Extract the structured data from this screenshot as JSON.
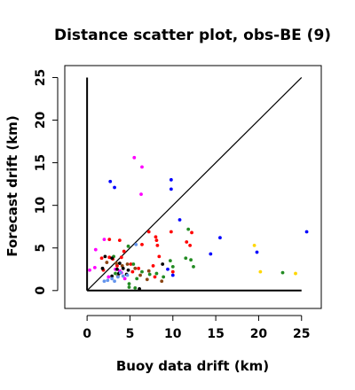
{
  "chart_data": {
    "type": "scatter",
    "title": "Distance scatter plot, obs-BE (9)",
    "xlabel": "Buoy data drift (km)",
    "ylabel": "Forecast drift (km)",
    "xlim": [
      -2.6,
      27.3
    ],
    "ylim": [
      -2.1,
      26.4
    ],
    "x_ticks": [
      0,
      5,
      10,
      15,
      20,
      25
    ],
    "y_ticks": [
      0,
      5,
      10,
      15,
      20,
      25
    ],
    "grid": false,
    "legend": "none",
    "reference_lines": [
      {
        "name": "y-axis",
        "x": [
          0,
          0
        ],
        "y": [
          0,
          25
        ],
        "color": "#000000"
      },
      {
        "name": "x-axis",
        "x": [
          0,
          25
        ],
        "y": [
          0,
          0
        ],
        "color": "#000000"
      },
      {
        "name": "identity",
        "x": [
          0,
          25
        ],
        "y": [
          0,
          25
        ],
        "color": "#000000"
      }
    ],
    "series": [
      {
        "color": "#0000ff",
        "points": [
          [
            2.7,
            12.8
          ],
          [
            3.2,
            12.1
          ],
          [
            9.8,
            13.0
          ],
          [
            9.8,
            11.9
          ],
          [
            10.8,
            8.3
          ],
          [
            15.5,
            6.2
          ],
          [
            14.4,
            4.3
          ],
          [
            19.8,
            4.5
          ],
          [
            25.6,
            6.9
          ],
          [
            9.4,
            2.5
          ],
          [
            10.0,
            1.8
          ]
        ]
      },
      {
        "color": "#ff00ff",
        "points": [
          [
            5.5,
            15.6
          ],
          [
            6.4,
            14.5
          ],
          [
            6.3,
            11.3
          ],
          [
            1.0,
            4.8
          ],
          [
            2.0,
            6.0
          ],
          [
            0.3,
            2.4
          ],
          [
            0.9,
            2.7
          ],
          [
            3.8,
            2.3
          ],
          [
            4.4,
            1.4
          ],
          [
            2.5,
            1.6
          ],
          [
            3.3,
            2.5
          ],
          [
            4.0,
            2.1
          ]
        ]
      },
      {
        "color": "#ff0000",
        "points": [
          [
            2.6,
            6.0
          ],
          [
            3.8,
            5.9
          ],
          [
            7.2,
            6.9
          ],
          [
            8.0,
            6.3
          ],
          [
            8.1,
            5.9
          ],
          [
            8.2,
            5.3
          ],
          [
            9.8,
            6.9
          ],
          [
            11.6,
            5.7
          ],
          [
            12.2,
            6.8
          ],
          [
            12.0,
            5.3
          ],
          [
            6.4,
            5.4
          ],
          [
            4.3,
            4.6
          ],
          [
            8.4,
            4.0
          ],
          [
            3.0,
            3.7
          ],
          [
            1.7,
            3.8
          ],
          [
            2.6,
            3.9
          ],
          [
            4.0,
            3.9
          ],
          [
            5.1,
            3.1
          ],
          [
            6.0,
            2.6
          ],
          [
            7.7,
            2.9
          ],
          [
            7.9,
            1.6
          ],
          [
            10.0,
            2.2
          ],
          [
            1.9,
            2.4
          ],
          [
            3.5,
            2.9
          ],
          [
            5.3,
            2.2
          ]
        ]
      },
      {
        "color": "#228b22",
        "points": [
          [
            11.8,
            7.2
          ],
          [
            11.5,
            3.8
          ],
          [
            12.1,
            3.6
          ],
          [
            12.4,
            2.8
          ],
          [
            4.8,
            5.2
          ],
          [
            9.7,
            3.5
          ],
          [
            5.4,
            3.1
          ],
          [
            6.4,
            2.2
          ],
          [
            7.3,
            1.9
          ],
          [
            8.1,
            2.0
          ],
          [
            8.9,
            1.6
          ],
          [
            10.0,
            2.8
          ],
          [
            22.8,
            2.1
          ],
          [
            4.9,
            0.8
          ],
          [
            5.6,
            0.3
          ],
          [
            4.9,
            0.4
          ],
          [
            3.3,
            2.0
          ],
          [
            5.8,
            1.4
          ],
          [
            3.1,
            4.0
          ]
        ]
      },
      {
        "color": "#8b4513",
        "points": [
          [
            4.1,
            2.9
          ],
          [
            6.2,
            1.8
          ],
          [
            7.2,
            2.3
          ],
          [
            4.7,
            3.1
          ],
          [
            3.6,
            1.7
          ],
          [
            2.3,
            3.3
          ],
          [
            7.0,
            1.3
          ],
          [
            8.7,
            1.1
          ],
          [
            3.4,
            3.2
          ],
          [
            5.6,
            2.6
          ]
        ]
      },
      {
        "color": "#000000",
        "points": [
          [
            2.1,
            4.0
          ],
          [
            2.9,
            3.8
          ],
          [
            3.8,
            3.2
          ],
          [
            4.2,
            2.6
          ],
          [
            1.8,
            2.6
          ],
          [
            2.9,
            1.7
          ],
          [
            3.5,
            2.5
          ],
          [
            3.7,
            2.0
          ],
          [
            4.6,
            1.9
          ],
          [
            8.8,
            3.1
          ],
          [
            6.1,
            0.2
          ],
          [
            4.8,
            2.4
          ]
        ]
      },
      {
        "color": "#6495ed",
        "points": [
          [
            2.4,
            1.2
          ],
          [
            2.9,
            1.4
          ],
          [
            3.2,
            1.1
          ],
          [
            3.6,
            1.6
          ],
          [
            4.2,
            1.7
          ],
          [
            4.7,
            1.8
          ],
          [
            2.0,
            1.1
          ],
          [
            3.9,
            2.1
          ],
          [
            5.7,
            5.4
          ]
        ]
      },
      {
        "color": "#ffd700",
        "points": [
          [
            19.5,
            5.3
          ],
          [
            20.2,
            2.2
          ],
          [
            24.3,
            2.0
          ]
        ]
      }
    ]
  }
}
